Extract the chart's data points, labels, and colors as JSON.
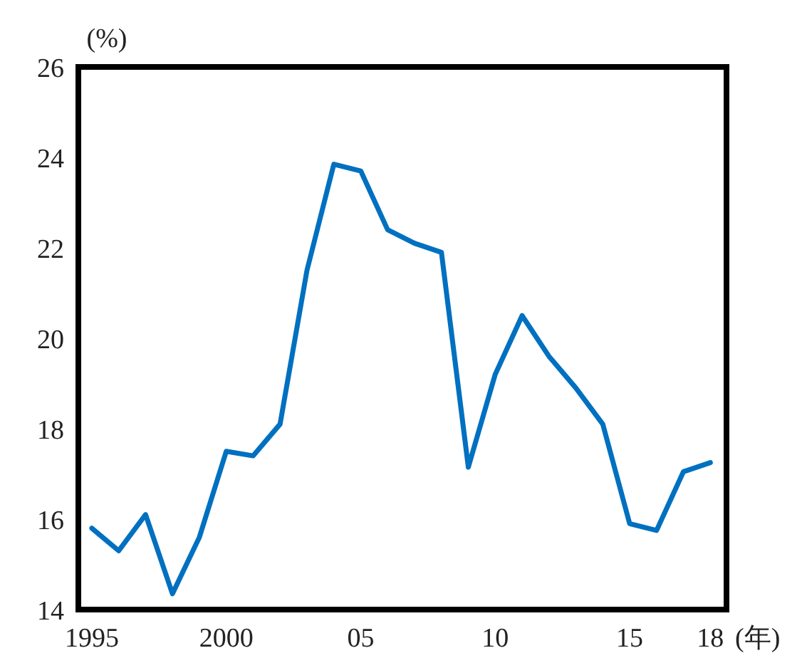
{
  "chart_data": {
    "type": "line",
    "ylabel": "(%)",
    "xlabel": "(年)",
    "x": [
      1995,
      1996,
      1997,
      1998,
      1999,
      2000,
      2001,
      2002,
      2003,
      2004,
      2005,
      2006,
      2007,
      2008,
      2009,
      2010,
      2011,
      2012,
      2013,
      2014,
      2015,
      2016,
      2017,
      2018
    ],
    "values": [
      15.8,
      15.3,
      16.1,
      14.35,
      15.6,
      17.5,
      17.4,
      18.1,
      21.5,
      23.85,
      23.7,
      22.4,
      22.1,
      21.9,
      17.15,
      19.2,
      20.5,
      19.6,
      18.9,
      18.1,
      15.9,
      15.75,
      17.05,
      17.25
    ],
    "color": "#0070c0",
    "xlim": [
      1994.5,
      2018.6
    ],
    "ylim": [
      14,
      26
    ],
    "xticks": [
      1995,
      2000,
      {
        "value": 2005,
        "label": "05"
      },
      {
        "value": 2010,
        "label": "10"
      },
      {
        "value": 2015,
        "label": "15"
      },
      {
        "value": 2018,
        "label": "18"
      }
    ],
    "yticks": [
      14,
      16,
      18,
      20,
      22,
      24,
      26
    ]
  }
}
